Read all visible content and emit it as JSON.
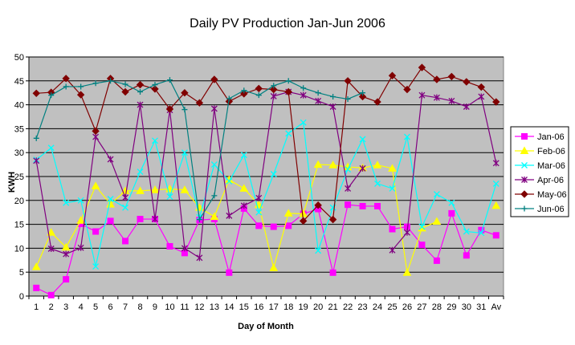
{
  "chart_data": {
    "type": "line",
    "title": "Daily PV Production Jan-Jun 2006",
    "xlabel": "Day of Month",
    "ylabel": "KWH",
    "categories": [
      "1",
      "2",
      "3",
      "4",
      "5",
      "6",
      "7",
      "8",
      "9",
      "10",
      "11",
      "12",
      "13",
      "14",
      "15",
      "16",
      "17",
      "18",
      "19",
      "20",
      "21",
      "22",
      "23",
      "24",
      "25",
      "26",
      "27",
      "28",
      "29",
      "30",
      "31",
      "Av"
    ],
    "ylim": [
      0,
      50
    ],
    "yticks": [
      "0",
      "5",
      "10",
      "15",
      "20",
      "25",
      "30",
      "35",
      "40",
      "45",
      "50"
    ],
    "grid": true,
    "legend_position": "right",
    "series": [
      {
        "name": "Jan-06",
        "color": "#ff00ff",
        "marker": "square",
        "values": [
          1.7,
          0.2,
          3.5,
          15.1,
          13.5,
          15.7,
          11.5,
          16.1,
          16.1,
          10.4,
          9.0,
          15.9,
          16.1,
          4.9,
          18.3,
          14.7,
          14.5,
          14.7,
          17.2,
          18.2,
          4.9,
          19.1,
          18.8,
          18.8,
          14.0,
          14.5,
          10.7,
          7.4,
          17.3,
          8.5,
          13.8,
          12.7
        ]
      },
      {
        "name": "Feb-06",
        "color": "#ffff00",
        "marker": "triangle",
        "values": [
          6.1,
          13.3,
          10.2,
          15.8,
          23.0,
          19.2,
          22.0,
          22.0,
          22.2,
          22.4,
          22.2,
          18.5,
          16.6,
          24.3,
          22.5,
          19.1,
          5.9,
          17.3,
          17.2,
          27.5,
          27.4,
          27.0,
          26.8,
          27.4,
          26.7,
          4.9,
          14.2,
          15.6,
          null,
          null,
          null,
          18.9
        ]
      },
      {
        "name": "Mar-06",
        "color": "#00ffff",
        "marker": "x",
        "values": [
          28.5,
          31.0,
          19.5,
          20.0,
          6.2,
          20.3,
          18.5,
          26.0,
          32.5,
          20.8,
          30.0,
          16.5,
          27.5,
          24.0,
          29.5,
          17.5,
          25.5,
          34.0,
          36.3,
          9.5,
          18.5,
          26.5,
          32.8,
          23.5,
          22.5,
          33.3,
          14.5,
          21.3,
          19.5,
          13.5,
          13.2,
          23.5
        ]
      },
      {
        "name": "Apr-06",
        "color": "#800080",
        "marker": "star",
        "values": [
          28.3,
          9.9,
          8.8,
          10.1,
          33.3,
          28.6,
          20.6,
          40.0,
          16.1,
          38.9,
          10.0,
          8.0,
          39.2,
          16.8,
          18.9,
          20.5,
          41.8,
          42.7,
          42.0,
          40.8,
          39.6,
          22.5,
          26.7,
          null,
          9.6,
          13.3,
          42.0,
          41.5,
          40.8,
          39.6,
          41.7,
          27.8
        ]
      },
      {
        "name": "May-06",
        "color": "#800000",
        "marker": "diamond",
        "values": [
          42.4,
          42.6,
          45.5,
          42.1,
          34.5,
          45.5,
          42.7,
          44.2,
          43.3,
          39.1,
          42.5,
          40.4,
          45.3,
          40.7,
          42.3,
          43.4,
          43.2,
          42.7,
          15.7,
          19.0,
          16.0,
          45.0,
          41.7,
          40.6,
          46.1,
          43.2,
          47.8,
          45.3,
          45.9,
          44.8,
          43.7,
          40.6
        ]
      },
      {
        "name": "Jun-06",
        "color": "#008080",
        "marker": "plus",
        "values": [
          33.0,
          42.0,
          43.8,
          43.8,
          44.5,
          45.0,
          44.3,
          42.7,
          44.2,
          45.2,
          39.0,
          16.0,
          21.0,
          41.3,
          43.0,
          42.0,
          44.0,
          45.0,
          43.5,
          42.5,
          41.7,
          41.2,
          42.5,
          null,
          null,
          null,
          null,
          null,
          null,
          null,
          null,
          null
        ]
      }
    ]
  }
}
